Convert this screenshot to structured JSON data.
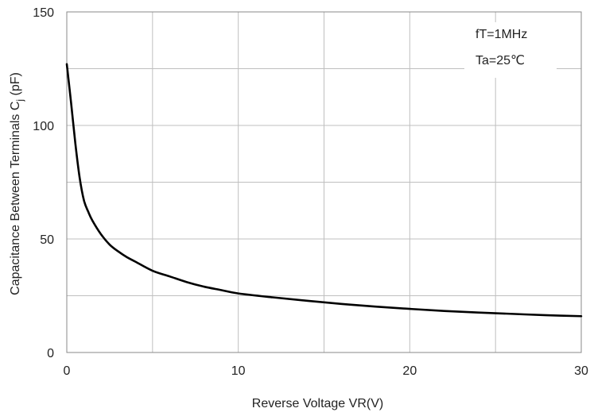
{
  "chart_data": {
    "type": "line",
    "title": "",
    "xlabel": "Reverse Voltage   VR(V)",
    "ylabel_main": "Capacitance Between Terminals C",
    "ylabel_sub": "j",
    "ylabel_unit": " (pF)",
    "xlim": [
      0,
      30
    ],
    "ylim": [
      0,
      150
    ],
    "x_ticks": [
      0,
      10,
      20,
      30
    ],
    "y_ticks": [
      0,
      50,
      100,
      150
    ],
    "x_tick_labels": [
      "0",
      "10",
      "20",
      "30"
    ],
    "y_tick_labels": [
      "0",
      "50",
      "100",
      "150"
    ],
    "x_grid": [
      0,
      5,
      10,
      15,
      20,
      25,
      30
    ],
    "y_grid": [
      0,
      25,
      50,
      75,
      100,
      125,
      150
    ],
    "grid": true,
    "annotations": [
      "fT=1MHz",
      "Ta=25℃"
    ],
    "series": [
      {
        "color": "#000000",
        "x": [
          0,
          0.25,
          0.5,
          0.75,
          1.0,
          1.25,
          1.5,
          2.0,
          2.5,
          3.0,
          3.5,
          4.0,
          5.0,
          6.0,
          7.0,
          8.0,
          9.0,
          10.0,
          12.0,
          14.0,
          16.0,
          18.0,
          20.0,
          22.0,
          24.0,
          26.0,
          28.0,
          30.0
        ],
        "y": [
          127,
          110,
          92,
          77,
          67,
          62,
          58,
          52,
          47.5,
          44.5,
          42,
          40,
          36,
          33.5,
          31,
          29,
          27.5,
          26,
          24.3,
          22.8,
          21.4,
          20.2,
          19.2,
          18.3,
          17.6,
          17.0,
          16.4,
          16.0
        ]
      }
    ]
  }
}
